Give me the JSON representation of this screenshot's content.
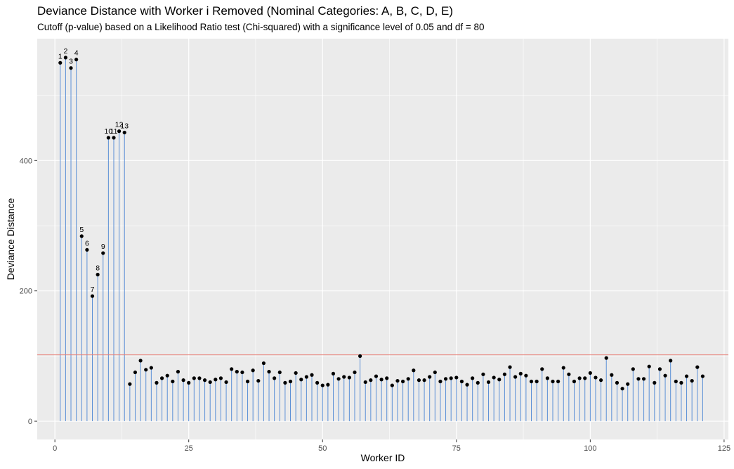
{
  "chart_data": {
    "type": "scatter",
    "title": "Deviance Distance with Worker i Removed (Nominal Categories: A, B, C, D, E)",
    "subtitle": "Cutoff (p-value) based on a Likelihood Ratio test (Chi-squared) with a significance level of 0.05 and df = 80",
    "xlabel": "Worker ID",
    "ylabel": "Deviance Distance",
    "xlim": [
      -3.3,
      125.8
    ],
    "ylim": [
      -28,
      587
    ],
    "x_ticks": [
      0,
      25,
      50,
      75,
      100,
      125
    ],
    "y_ticks": [
      0,
      200,
      400
    ],
    "grid": true,
    "cutoff": 101.9,
    "colors": {
      "panel": "#ebebeb",
      "grid": "#ffffff",
      "stem": "#5a8fd6",
      "point": "#000000",
      "cutoff": "#e8827a"
    },
    "labeled_points": [
      1,
      2,
      3,
      4,
      5,
      6,
      7,
      8,
      9,
      10,
      11,
      12,
      13
    ],
    "x": [
      1,
      2,
      3,
      4,
      5,
      6,
      7,
      8,
      9,
      10,
      11,
      12,
      13,
      14,
      15,
      16,
      17,
      18,
      19,
      20,
      21,
      22,
      23,
      24,
      25,
      26,
      27,
      28,
      29,
      30,
      31,
      32,
      33,
      34,
      35,
      36,
      37,
      38,
      39,
      40,
      41,
      42,
      43,
      44,
      45,
      46,
      47,
      48,
      49,
      50,
      51,
      52,
      53,
      54,
      55,
      56,
      57,
      58,
      59,
      60,
      61,
      62,
      63,
      64,
      65,
      66,
      67,
      68,
      69,
      70,
      71,
      72,
      73,
      74,
      75,
      76,
      77,
      78,
      79,
      80,
      81,
      82,
      83,
      84,
      85,
      86,
      87,
      88,
      89,
      90,
      91,
      92,
      93,
      94,
      95,
      96,
      97,
      98,
      99,
      100,
      101,
      102,
      103,
      104,
      105,
      106,
      107,
      108,
      109,
      110,
      111,
      112,
      113,
      114,
      115,
      116,
      117,
      118,
      119,
      120,
      121
    ],
    "y": [
      550,
      558,
      542,
      555,
      284,
      263,
      192,
      225,
      258,
      435,
      435,
      445,
      443,
      57,
      75,
      93,
      79,
      82,
      59,
      66,
      70,
      61,
      76,
      63,
      59,
      66,
      66,
      63,
      60,
      64,
      66,
      60,
      80,
      76,
      75,
      61,
      78,
      62,
      89,
      76,
      66,
      75,
      59,
      61,
      74,
      64,
      68,
      71,
      59,
      55,
      56,
      73,
      65,
      68,
      67,
      75,
      100,
      60,
      63,
      69,
      64,
      66,
      55,
      62,
      61,
      65,
      78,
      63,
      63,
      68,
      75,
      61,
      65,
      66,
      67,
      61,
      56,
      66,
      59,
      72,
      60,
      67,
      64,
      72,
      83,
      68,
      73,
      70,
      61,
      61,
      80,
      66,
      61,
      61,
      82,
      72,
      61,
      66,
      66,
      74,
      67,
      63,
      97,
      71,
      59,
      50,
      57,
      80,
      65,
      65,
      84,
      59,
      80,
      70,
      93,
      61,
      59,
      69,
      62,
      83,
      69
    ]
  }
}
